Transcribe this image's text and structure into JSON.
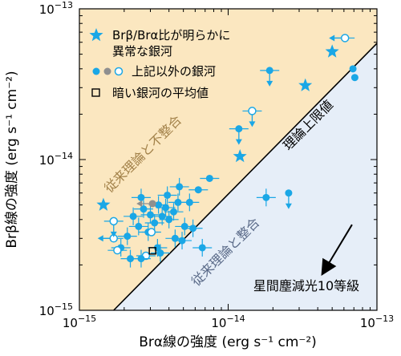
{
  "chart_data": {
    "type": "scatter",
    "x_scale": "log",
    "y_scale": "log",
    "xlim": [
      1e-15,
      1e-13
    ],
    "ylim": [
      1e-15,
      1e-13
    ],
    "x_ticks": [
      {
        "value": 1e-15,
        "base": "10",
        "exp": "−15"
      },
      {
        "value": 1e-14,
        "base": "10",
        "exp": "−14"
      },
      {
        "value": 1e-13,
        "base": "10",
        "exp": "−13"
      }
    ],
    "y_ticks": [
      {
        "value": 1e-15,
        "base": "10",
        "exp": "−15"
      },
      {
        "value": 1e-14,
        "base": "10",
        "exp": "−14"
      },
      {
        "value": 1e-13,
        "base": "10",
        "exp": "−13"
      }
    ],
    "xlabel": "Brα線の強度 (erg s⁻¹ cm⁻²)",
    "ylabel": "Brβ線の強度 (erg s⁻¹ cm⁻²)",
    "colors": {
      "point": "#1aa7e6",
      "gray_point": "#8f8f8f",
      "upper_region": "#fbe7c0",
      "lower_region": "#e6eef8",
      "upper_region_text": "#a3824a",
      "lower_region_text": "#5a6a88"
    },
    "regions": {
      "upper_label": "従来理論と不整合",
      "lower_label": "従来理論と整合",
      "line_label": "理論上限値"
    },
    "limit_line": [
      [
        1.7e-15,
        1e-15
      ],
      [
        1e-13,
        5.9e-14
      ]
    ],
    "extinction_arrow": {
      "label": "星間塵減光10等級",
      "from": [
        6.8e-14,
        3.7e-15
      ],
      "to": [
        4.5e-14,
        1.88e-15
      ]
    },
    "legend": {
      "items": [
        {
          "marker": "star",
          "label_line1": "Brβ/Brα比が明らかに",
          "label_line2": "異常な銀河"
        },
        {
          "marker": "dots",
          "label_line1": "上記以外の銀河"
        },
        {
          "marker": "square",
          "label_line1": "暗い銀河の平均値"
        }
      ]
    },
    "series": [
      {
        "name": "Brβ/Brα比が明らかに異常な銀河",
        "marker": "star",
        "points": [
          {
            "x": 1.2e-14,
            "y": 1.05e-14
          },
          {
            "x": 3.3e-14,
            "y": 3.1e-14
          },
          {
            "x": 5e-14,
            "y": 5.2e-14
          },
          {
            "x": 1.45e-15,
            "y": 5e-15
          }
        ]
      },
      {
        "name": "上記以外の銀河",
        "marker": "dot",
        "points": [
          {
            "x": 7.1e-14,
            "y": 3.5e-14,
            "filled": true
          },
          {
            "x": 6.9e-14,
            "y": 4e-14,
            "filled": true
          },
          {
            "x": 6.1e-14,
            "y": 6.4e-14,
            "filled": false,
            "xerr": true,
            "arrow": "left"
          },
          {
            "x": 1.9e-14,
            "y": 3.9e-14,
            "filled": true,
            "xerr": true,
            "arrow": "down"
          },
          {
            "x": 1.45e-14,
            "y": 2.1e-14,
            "filled": false,
            "xerr": true,
            "arrow": "down"
          },
          {
            "x": 1.18e-14,
            "y": 1.6e-14,
            "filled": true,
            "xerr": true,
            "arrow": "down"
          },
          {
            "x": 2.55e-14,
            "y": 6e-15,
            "filled": true,
            "arrow": "down"
          },
          {
            "x": 1.8e-14,
            "y": 5.6e-15,
            "filled": true,
            "xerr": true,
            "yerr": true
          },
          {
            "x": 7.5e-15,
            "y": 7.5e-15,
            "filled": true,
            "xerr": true
          },
          {
            "x": 6.3e-15,
            "y": 6.3e-15,
            "filled": true,
            "xerr": true
          },
          {
            "x": 5.5e-15,
            "y": 5.2e-15,
            "filled": true,
            "xerr": true,
            "yerr": true
          },
          {
            "x": 5.1e-15,
            "y": 3.6e-15,
            "filled": true,
            "xerr": true,
            "yerr": true
          },
          {
            "x": 4.6e-15,
            "y": 5.2e-15,
            "filled": true,
            "xerr": true,
            "yerr": true
          },
          {
            "x": 4.3e-15,
            "y": 4.5e-15,
            "filled": true,
            "xerr": true,
            "yerr": true
          },
          {
            "x": 4e-15,
            "y": 4e-15,
            "filled": true,
            "xerr": true,
            "yerr": true
          },
          {
            "x": 3.8e-15,
            "y": 4.8e-15,
            "filled": true,
            "xerr": true,
            "yerr": true
          },
          {
            "x": 3.6e-15,
            "y": 4.2e-15,
            "filled": true,
            "xerr": true,
            "yerr": true
          },
          {
            "x": 3.4e-15,
            "y": 5e-15,
            "filled": true,
            "xerr": true,
            "yerr": true
          },
          {
            "x": 3.2e-15,
            "y": 3.8e-15,
            "filled": true,
            "xerr": true,
            "yerr": true
          },
          {
            "x": 3e-15,
            "y": 4.3e-15,
            "filled": true,
            "xerr": true,
            "yerr": true
          },
          {
            "x": 2.9e-15,
            "y": 3.3e-15,
            "filled": true,
            "xerr": true,
            "yerr": true
          },
          {
            "x": 2.7e-15,
            "y": 4.7e-15,
            "filled": true,
            "xerr": true,
            "yerr": true
          },
          {
            "x": 2.5e-15,
            "y": 3.6e-15,
            "filled": true,
            "xerr": true,
            "yerr": true
          },
          {
            "x": 2.3e-15,
            "y": 4.2e-15,
            "filled": true,
            "xerr": true,
            "yerr": true
          },
          {
            "x": 2.1e-15,
            "y": 3.1e-15,
            "filled": true,
            "xerr": true,
            "yerr": true
          },
          {
            "x": 1.9e-15,
            "y": 2.6e-15,
            "filled": true,
            "xerr": true,
            "yerr": true
          },
          {
            "x": 1.8e-15,
            "y": 2.5e-15,
            "filled": false,
            "xerr": true
          },
          {
            "x": 1.7e-15,
            "y": 3e-15,
            "filled": false,
            "xerr": true,
            "arrow": "left"
          },
          {
            "x": 1.7e-15,
            "y": 3.9e-15,
            "filled": false,
            "xerr": true,
            "arrow": "down"
          },
          {
            "x": 3.35e-15,
            "y": 2.6e-15,
            "filled": true,
            "xerr": true,
            "yerr": true
          },
          {
            "x": 3.5e-15,
            "y": 2.4e-15,
            "filled": true,
            "xerr": true,
            "yerr": true
          },
          {
            "x": 2.8e-15,
            "y": 2.3e-15,
            "filled": false,
            "xerr": true
          },
          {
            "x": 3.05e-15,
            "y": 3.3e-15,
            "filled": false,
            "xerr": true
          },
          {
            "x": 4.4e-15,
            "y": 3e-15,
            "filled": true,
            "xerr": true,
            "yerr": true
          },
          {
            "x": 4.9e-15,
            "y": 2.9e-15,
            "filled": true,
            "xerr": true,
            "yerr": true
          },
          {
            "x": 5.8e-15,
            "y": 3.5e-15,
            "filled": true,
            "xerr": true,
            "yerr": true
          },
          {
            "x": 6.7e-15,
            "y": 2.6e-15,
            "filled": true,
            "xerr": true,
            "yerr": true
          },
          {
            "x": 3.9e-15,
            "y": 5.8e-15,
            "filled": true,
            "xerr": true,
            "yerr": true
          },
          {
            "x": 2.6e-15,
            "y": 5.6e-15,
            "filled": true,
            "xerr": true,
            "yerr": true
          },
          {
            "x": 4.7e-15,
            "y": 6.6e-15,
            "filled": true,
            "xerr": true,
            "yerr": true
          },
          {
            "x": 2.2e-15,
            "y": 2.2e-15,
            "filled": true,
            "xerr": true,
            "yerr": true
          },
          {
            "x": 2.6e-15,
            "y": 2.2e-15,
            "filled": true,
            "xerr": true,
            "yerr": true
          }
        ]
      },
      {
        "name": "上記以外の銀河 (gray)",
        "marker": "dot",
        "points": [
          {
            "x": 3.1e-15,
            "y": 5.1e-15,
            "filled": true,
            "gray": true,
            "arrow": "left"
          }
        ]
      },
      {
        "name": "暗い銀河の平均値",
        "marker": "square",
        "points": [
          {
            "x": 3.1e-15,
            "y": 2.48e-15
          }
        ]
      }
    ]
  }
}
